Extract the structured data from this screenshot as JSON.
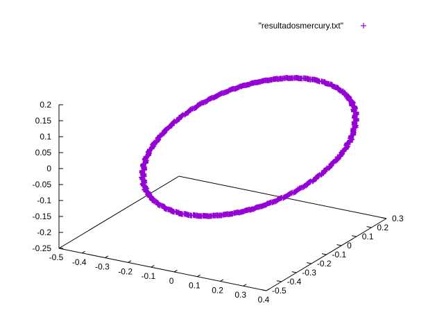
{
  "chart_data": {
    "type": "scatter",
    "view": "3d",
    "legend": {
      "placement": "top-right",
      "label": "\"resultadosmercury.txt\"",
      "marker": "plus"
    },
    "colors": {
      "series": "#9400d3",
      "axes": "#000000",
      "background": "#ffffff"
    },
    "grid": false,
    "xlim": [
      -0.5,
      0.4
    ],
    "ylim": [
      -0.5,
      0.3
    ],
    "zlim": [
      -0.25,
      0.2
    ],
    "x_ticks": [
      "-0.5",
      "-0.4",
      "-0.3",
      "-0.2",
      "-0.1",
      "0",
      "0.1",
      "0.2",
      "0.3",
      "0.4"
    ],
    "y_ticks": [
      "-0.5",
      "-0.4",
      "-0.3",
      "-0.2",
      "-0.1",
      "0",
      "0.1",
      "0.2",
      "0.3"
    ],
    "z_ticks": [
      "0.2",
      "0.15",
      "0.1",
      "0.05",
      "0",
      "-0.05",
      "-0.1",
      "-0.15",
      "-0.2",
      "-0.25"
    ],
    "series": [
      {
        "name": "\"resultadosmercury.txt\"",
        "orbit": {
          "center": [
            0.0,
            0.0,
            0.0
          ],
          "semi_axis_a": 0.39,
          "semi_axis_b": 0.38,
          "tilt_axis_z": 0.11
        }
      }
    ]
  }
}
